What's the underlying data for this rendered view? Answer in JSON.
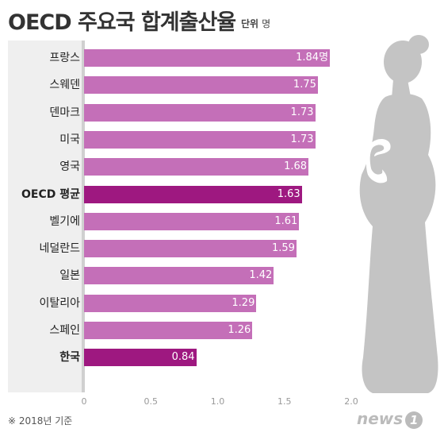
{
  "title": "OECD 주요국 합계출산율",
  "unit": {
    "label": "단위",
    "value": "명"
  },
  "note": "※ 2018년 기준",
  "logo": {
    "text": "news",
    "mark": "1"
  },
  "colors": {
    "bar": "#c46fb8",
    "highlight": "#9e1880",
    "panel": "#efefef"
  },
  "chart_data": {
    "type": "bar",
    "orientation": "horizontal",
    "categories": [
      "프랑스",
      "스웨덴",
      "덴마크",
      "미국",
      "영국",
      "OECD 평균",
      "벨기에",
      "네덜란드",
      "일본",
      "이탈리아",
      "스페인",
      "한국"
    ],
    "values": [
      1.84,
      1.75,
      1.73,
      1.73,
      1.68,
      1.63,
      1.61,
      1.59,
      1.42,
      1.29,
      1.26,
      0.84
    ],
    "value_labels": [
      "1.84명",
      "1.75",
      "1.73",
      "1.73",
      "1.68",
      "1.63",
      "1.61",
      "1.59",
      "1.42",
      "1.29",
      "1.26",
      "0.84"
    ],
    "highlighted": [
      "OECD 평균",
      "한국"
    ],
    "xlim": [
      0,
      2.0
    ],
    "xticks": [
      "0",
      "0.5",
      "1.0",
      "1.5",
      "2.0"
    ],
    "xtick_values": [
      0,
      0.5,
      1.0,
      1.5,
      2.0
    ]
  }
}
